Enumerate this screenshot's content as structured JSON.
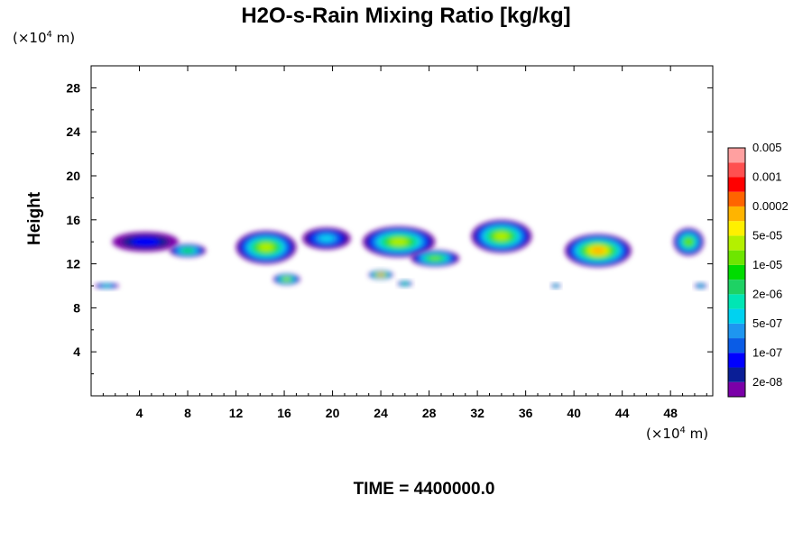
{
  "chart_data": {
    "type": "heatmap",
    "title": "H2O-s-Rain Mixing Ratio [kg/kg]",
    "ylabel": "Height",
    "xlabel": "",
    "x_unit_prefix": "(×10",
    "x_unit_exp": "4",
    "x_unit_suffix": " m)",
    "y_unit_prefix": "(×10",
    "y_unit_exp": "4",
    "y_unit_suffix": " m)",
    "xlim": [
      0,
      51.5
    ],
    "ylim": [
      0,
      30
    ],
    "xticks": [
      4,
      8,
      12,
      16,
      20,
      24,
      28,
      32,
      36,
      40,
      44,
      48
    ],
    "yticks": [
      4,
      8,
      12,
      16,
      20,
      24,
      28
    ],
    "colorbar": {
      "colors": [
        "#7a00a8",
        "#0a1e96",
        "#0000ff",
        "#0a5ce6",
        "#1e96f0",
        "#00d2f0",
        "#00e6b4",
        "#1ed264",
        "#00dc00",
        "#6ee600",
        "#b4f000",
        "#fff000",
        "#ffb400",
        "#ff6400",
        "#ff0000",
        "#ff5050",
        "#ffa0a0"
      ],
      "labels": [
        "2e-08",
        "1e-07",
        "5e-07",
        "2e-06",
        "1e-05",
        "5e-05",
        "0.0002",
        "0.001",
        "0.005"
      ]
    },
    "clouds": [
      {
        "x": 4.5,
        "y": 14.0,
        "w": 5.5,
        "h": 1.8,
        "level": 2
      },
      {
        "x": 8.0,
        "y": 13.2,
        "w": 3.0,
        "h": 1.2,
        "level": 8
      },
      {
        "x": 14.5,
        "y": 13.5,
        "w": 5.0,
        "h": 3.0,
        "level": 10
      },
      {
        "x": 16.2,
        "y": 10.6,
        "w": 2.2,
        "h": 1.0,
        "level": 10
      },
      {
        "x": 19.5,
        "y": 14.3,
        "w": 4.0,
        "h": 2.0,
        "level": 5
      },
      {
        "x": 25.5,
        "y": 14.0,
        "w": 6.0,
        "h": 2.8,
        "level": 10
      },
      {
        "x": 24.0,
        "y": 11.0,
        "w": 2.0,
        "h": 0.8,
        "level": 13
      },
      {
        "x": 28.5,
        "y": 12.5,
        "w": 4.0,
        "h": 1.5,
        "level": 9
      },
      {
        "x": 34.0,
        "y": 14.5,
        "w": 5.0,
        "h": 3.0,
        "level": 10
      },
      {
        "x": 42.0,
        "y": 13.2,
        "w": 5.5,
        "h": 3.0,
        "level": 12
      },
      {
        "x": 49.5,
        "y": 14.0,
        "w": 2.5,
        "h": 2.5,
        "level": 9
      },
      {
        "x": 1.3,
        "y": 10.0,
        "w": 2.0,
        "h": 0.5,
        "level": 6
      },
      {
        "x": 26.0,
        "y": 10.2,
        "w": 1.2,
        "h": 0.5,
        "level": 8
      },
      {
        "x": 38.5,
        "y": 10.0,
        "w": 0.8,
        "h": 0.4,
        "level": 7
      },
      {
        "x": 50.5,
        "y": 10.0,
        "w": 1.0,
        "h": 0.5,
        "level": 6
      }
    ]
  },
  "time_text": "TIME = 4400000.0"
}
